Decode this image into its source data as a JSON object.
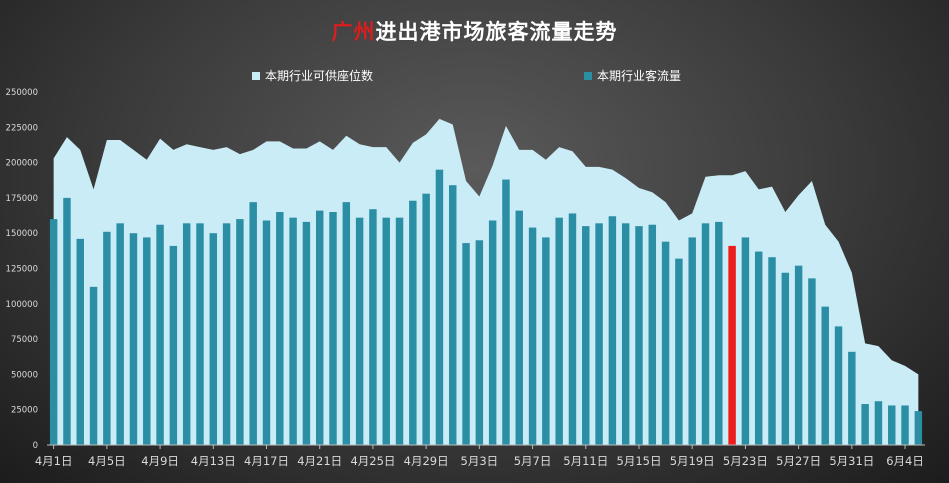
{
  "title": {
    "red_part": "广州",
    "rest": "进出港市场旅客流量走势"
  },
  "colors": {
    "capacity": "#c9ecf6",
    "passengers": "#2b8ea5",
    "highlight": "#ee1c1c",
    "axis_text": "#d9d9d9"
  },
  "chart_data": {
    "type": "bar",
    "title": "广州进出港市场旅客流量走势",
    "ylim": [
      0,
      250000
    ],
    "yticks": [
      0,
      25000,
      50000,
      75000,
      100000,
      125000,
      150000,
      175000,
      200000,
      225000,
      250000
    ],
    "categories": [
      "4月1日",
      "4月2日",
      "4月3日",
      "4月4日",
      "4月5日",
      "4月6日",
      "4月7日",
      "4月8日",
      "4月9日",
      "4月10日",
      "4月11日",
      "4月12日",
      "4月13日",
      "4月14日",
      "4月15日",
      "4月16日",
      "4月17日",
      "4月18日",
      "4月19日",
      "4月20日",
      "4月21日",
      "4月22日",
      "4月23日",
      "4月24日",
      "4月25日",
      "4月26日",
      "4月27日",
      "4月28日",
      "4月29日",
      "4月30日",
      "5月1日",
      "5月2日",
      "5月3日",
      "5月4日",
      "5月5日",
      "5月6日",
      "5月7日",
      "5月8日",
      "5月9日",
      "5月10日",
      "5月11日",
      "5月12日",
      "5月13日",
      "5月14日",
      "5月15日",
      "5月16日",
      "5月17日",
      "5月18日",
      "5月19日",
      "5月20日",
      "5月21日",
      "5月22日",
      "5月23日",
      "5月24日",
      "5月25日",
      "5月26日",
      "5月27日",
      "5月28日",
      "5月29日",
      "5月30日",
      "5月31日",
      "6月1日",
      "6月2日",
      "6月3日",
      "6月4日",
      "6月5日"
    ],
    "x_tick_labels": [
      "4月1日",
      "4月5日",
      "4月9日",
      "4月13日",
      "4月17日",
      "4月21日",
      "4月25日",
      "4月29日",
      "5月3日",
      "5月7日",
      "5月11日",
      "5月15日",
      "5月19日",
      "5月23日",
      "5月27日",
      "5月31日",
      "6月4日"
    ],
    "highlight_category": "5月22日",
    "legend_position": "top-center",
    "grid": false,
    "series": [
      {
        "name": "本期行业可供座位数",
        "type": "area",
        "values": [
          203000,
          218000,
          209000,
          181000,
          216000,
          216000,
          209000,
          202000,
          217000,
          209000,
          213000,
          211000,
          209000,
          211000,
          206000,
          209000,
          215000,
          215000,
          210000,
          210000,
          215000,
          209000,
          219000,
          213000,
          211000,
          211000,
          200000,
          214000,
          220000,
          231000,
          227000,
          187000,
          176000,
          198000,
          226000,
          209000,
          209000,
          202000,
          211000,
          208000,
          197000,
          197000,
          195000,
          189000,
          182000,
          179000,
          172000,
          159000,
          164000,
          190000,
          191000,
          191000,
          194000,
          181000,
          183000,
          165000,
          177000,
          187000,
          156000,
          144000,
          122000,
          72000,
          70000,
          60000,
          56000,
          50000
        ]
      },
      {
        "name": "本期行业客流量",
        "type": "bar",
        "values": [
          160000,
          175000,
          146000,
          112000,
          151000,
          157000,
          150000,
          147000,
          156000,
          141000,
          157000,
          157000,
          150000,
          157000,
          160000,
          172000,
          159000,
          165000,
          161000,
          158000,
          166000,
          165000,
          172000,
          161000,
          167000,
          161000,
          161000,
          173000,
          178000,
          195000,
          184000,
          143000,
          145000,
          159000,
          188000,
          166000,
          154000,
          147000,
          161000,
          164000,
          155000,
          157000,
          162000,
          157000,
          155000,
          156000,
          144000,
          132000,
          147000,
          157000,
          158000,
          141000,
          147000,
          137000,
          133000,
          122000,
          127000,
          118000,
          98000,
          84000,
          66000,
          29000,
          31000,
          28000,
          28000,
          24000
        ]
      }
    ]
  }
}
